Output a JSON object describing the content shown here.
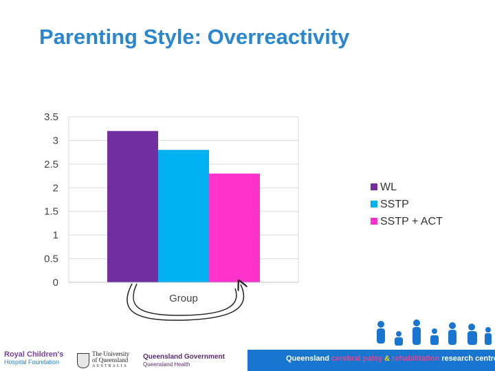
{
  "slide": {
    "title": "Parenting Style: Overreactivity"
  },
  "chart_data": {
    "type": "bar",
    "xlabel": "Group",
    "ylabel": "",
    "ylim": [
      0,
      3.5
    ],
    "yticks": [
      "0",
      "0.5",
      "1",
      "1.5",
      "2",
      "2.5",
      "3",
      "3.5"
    ],
    "categories": [
      "Group"
    ],
    "series": [
      {
        "name": "WL",
        "values": [
          3.2
        ],
        "color": "#7030a0"
      },
      {
        "name": "SSTP",
        "values": [
          2.8
        ],
        "color": "#00b0f0"
      },
      {
        "name": "SSTP + ACT",
        "values": [
          2.3
        ],
        "color": "#ff33cc"
      }
    ],
    "grid": true,
    "legend": "right",
    "annotation": "curved arrow from WL bar to SSTP + ACT bar"
  },
  "footer": {
    "logos": {
      "rch_name": "Royal Children's",
      "rch_sub": "Hospital Foundation",
      "uq_line1": "The University",
      "uq_line2": "of Queensland",
      "uq_line3": "AUSTRALIA",
      "qg_name": "Queensland Government",
      "qg_sub": "Queensland Health"
    },
    "centre": {
      "part1": "Queensland ",
      "part2": "cerebral palsy ",
      "part3": "& ",
      "part4": "rehabilitation ",
      "part5": "research centre"
    },
    "colors": {
      "bar": "#1976d0"
    }
  }
}
